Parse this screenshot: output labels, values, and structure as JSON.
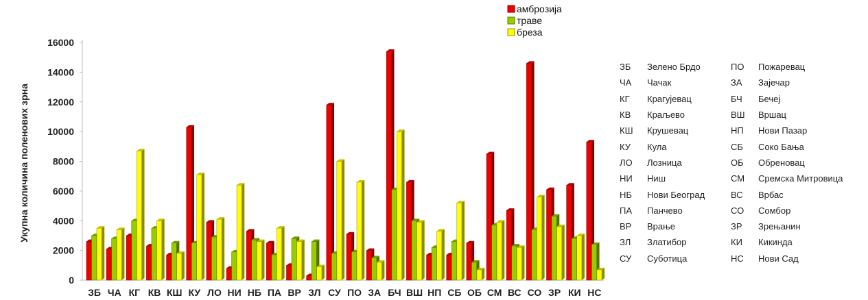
{
  "chart_data": {
    "type": "bar",
    "title": "",
    "xlabel": "",
    "ylabel": "Укупна количина поленових зрна",
    "ylim": [
      0,
      16000
    ],
    "yticks": [
      0,
      2000,
      4000,
      6000,
      8000,
      10000,
      12000,
      14000,
      16000
    ],
    "grid": false,
    "legend_position": "top",
    "categories": [
      "ЗБ",
      "ЧА",
      "КГ",
      "КВ",
      "КШ",
      "КУ",
      "ЛО",
      "НИ",
      "НБ",
      "ПА",
      "ВР",
      "ЗЛ",
      "СУ",
      "ПО",
      "ЗА",
      "БЧ",
      "ВШ",
      "НП",
      "СБ",
      "ОБ",
      "СМ",
      "ВС",
      "СО",
      "ЗР",
      "КИ",
      "НС"
    ],
    "series": [
      {
        "name": "амброзија",
        "color": "#ee0000",
        "values": [
          2600,
          2100,
          3000,
          2300,
          1700,
          10300,
          3900,
          800,
          3300,
          2500,
          1000,
          300,
          11800,
          3100,
          2000,
          15400,
          6600,
          1700,
          1700,
          2500,
          8500,
          4700,
          14600,
          6100,
          6400,
          9300
        ]
      },
      {
        "name": "траве",
        "color": "#99cc00",
        "values": [
          3000,
          2800,
          4000,
          3500,
          2500,
          2500,
          2900,
          1900,
          2700,
          1700,
          2800,
          2600,
          1800,
          1900,
          1500,
          6100,
          4000,
          2200,
          2600,
          1200,
          3700,
          2300,
          3400,
          4300,
          2800,
          2400
        ]
      },
      {
        "name": "бреза",
        "color": "#ffff00",
        "values": [
          3500,
          3400,
          8700,
          4000,
          1800,
          7100,
          4100,
          6400,
          2600,
          3500,
          2600,
          900,
          8000,
          6600,
          1200,
          10000,
          3900,
          3300,
          5200,
          700,
          3900,
          2200,
          5600,
          3600,
          3000,
          700
        ]
      }
    ]
  },
  "legend": {
    "items": [
      "амброзија",
      "траве",
      "бреза"
    ]
  },
  "abbreviations": {
    "left": [
      {
        "code": "ЗБ",
        "name": "Зелено Брдо"
      },
      {
        "code": "ЧА",
        "name": "Чачак"
      },
      {
        "code": "КГ",
        "name": "Крагујевац"
      },
      {
        "code": "КВ",
        "name": "Краљево"
      },
      {
        "code": "КШ",
        "name": "Крушевац"
      },
      {
        "code": "КУ",
        "name": "Кула"
      },
      {
        "code": "ЛО",
        "name": "Лозница"
      },
      {
        "code": "НИ",
        "name": "Ниш"
      },
      {
        "code": "НБ",
        "name": "Нови Београд"
      },
      {
        "code": "ПА",
        "name": "Панчево"
      },
      {
        "code": "ВР",
        "name": "Врање"
      },
      {
        "code": "ЗЛ",
        "name": "Златибор"
      },
      {
        "code": "СУ",
        "name": "Суботица"
      }
    ],
    "right": [
      {
        "code": "ПО",
        "name": "Пожаревац"
      },
      {
        "code": "ЗА",
        "name": "Зајечар"
      },
      {
        "code": "БЧ",
        "name": "Бечеј"
      },
      {
        "code": "ВШ",
        "name": "Вршац"
      },
      {
        "code": "НП",
        "name": "Нови Пазар"
      },
      {
        "code": "СБ",
        "name": "Соко Бања"
      },
      {
        "code": "ОБ",
        "name": "Обреновац"
      },
      {
        "code": "СМ",
        "name": "Сремска Митровица"
      },
      {
        "code": "ВС",
        "name": "Врбас"
      },
      {
        "code": "СО",
        "name": "Сомбор"
      },
      {
        "code": "ЗР",
        "name": "Зрењанин"
      },
      {
        "code": "КИ",
        "name": "Кикинда"
      },
      {
        "code": "НС",
        "name": "Нови Сад"
      }
    ]
  }
}
